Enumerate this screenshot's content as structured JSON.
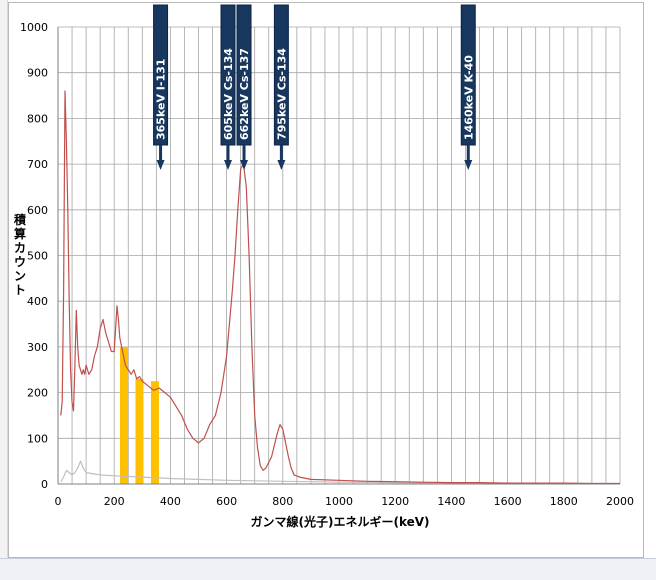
{
  "chart_data": {
    "type": "line",
    "xlabel": "ガンマ線(光子)エネルギー(keV)",
    "ylabel": "積算カウント",
    "xlim": [
      0,
      2000
    ],
    "ylim": [
      0,
      1000
    ],
    "xticks": [
      0,
      200,
      400,
      600,
      800,
      1000,
      1200,
      1400,
      1600,
      1800,
      2000
    ],
    "yticks": [
      0,
      100,
      200,
      300,
      400,
      500,
      600,
      700,
      800,
      900,
      1000
    ],
    "grid": true,
    "legend": "none",
    "series": [
      {
        "color": "#c0504d",
        "x": [
          10,
          15,
          20,
          25,
          30,
          35,
          40,
          45,
          50,
          55,
          60,
          65,
          70,
          75,
          80,
          85,
          90,
          95,
          100,
          110,
          120,
          130,
          140,
          150,
          160,
          170,
          180,
          190,
          200,
          210,
          215,
          220,
          230,
          240,
          250,
          260,
          270,
          280,
          290,
          300,
          320,
          340,
          360,
          380,
          400,
          420,
          440,
          460,
          480,
          500,
          520,
          540,
          560,
          580,
          590,
          600,
          610,
          620,
          630,
          640,
          650,
          660,
          670,
          680,
          690,
          700,
          710,
          720,
          730,
          740,
          760,
          780,
          790,
          800,
          810,
          820,
          830,
          840,
          860,
          900,
          1000,
          1100,
          1200,
          1300,
          1400,
          1500,
          1600,
          1700,
          1800,
          1900,
          2000
        ],
        "y": [
          150,
          180,
          420,
          860,
          750,
          600,
          400,
          250,
          180,
          160,
          260,
          380,
          300,
          260,
          250,
          240,
          250,
          240,
          260,
          240,
          250,
          280,
          300,
          340,
          360,
          330,
          310,
          290,
          290,
          390,
          360,
          320,
          290,
          260,
          250,
          240,
          250,
          230,
          235,
          225,
          215,
          205,
          210,
          200,
          190,
          170,
          150,
          120,
          100,
          90,
          100,
          130,
          150,
          200,
          240,
          280,
          350,
          420,
          500,
          600,
          690,
          700,
          650,
          500,
          300,
          150,
          80,
          40,
          30,
          35,
          60,
          110,
          130,
          120,
          90,
          60,
          35,
          20,
          15,
          10,
          8,
          6,
          5,
          4,
          3,
          3,
          2,
          2,
          2,
          1,
          1
        ]
      },
      {
        "color": "#bfbfbf",
        "x": [
          10,
          20,
          30,
          40,
          50,
          60,
          70,
          80,
          90,
          100,
          150,
          200,
          300,
          400,
          500,
          600,
          700,
          800,
          900,
          1000,
          1200,
          1400,
          1600,
          1800,
          2000
        ],
        "y": [
          5,
          15,
          30,
          25,
          20,
          25,
          35,
          50,
          35,
          25,
          20,
          18,
          15,
          12,
          10,
          8,
          7,
          6,
          5,
          4,
          3,
          2,
          2,
          1,
          1
        ]
      }
    ],
    "bands": [
      {
        "x": 235,
        "y": 300,
        "color": "#ffc000"
      },
      {
        "x": 290,
        "y": 230,
        "color": "#ffc000"
      },
      {
        "x": 345,
        "y": 225,
        "color": "#ffc000"
      }
    ],
    "annotations": [
      {
        "x": 365,
        "label": "365keV  I-131"
      },
      {
        "x": 605,
        "label": "605keV  Cs-134"
      },
      {
        "x": 662,
        "label": "662keV  Cs-137"
      },
      {
        "x": 795,
        "label": "795keV  Cs-134"
      },
      {
        "x": 1460,
        "label": "1460keV  K-40"
      }
    ]
  }
}
